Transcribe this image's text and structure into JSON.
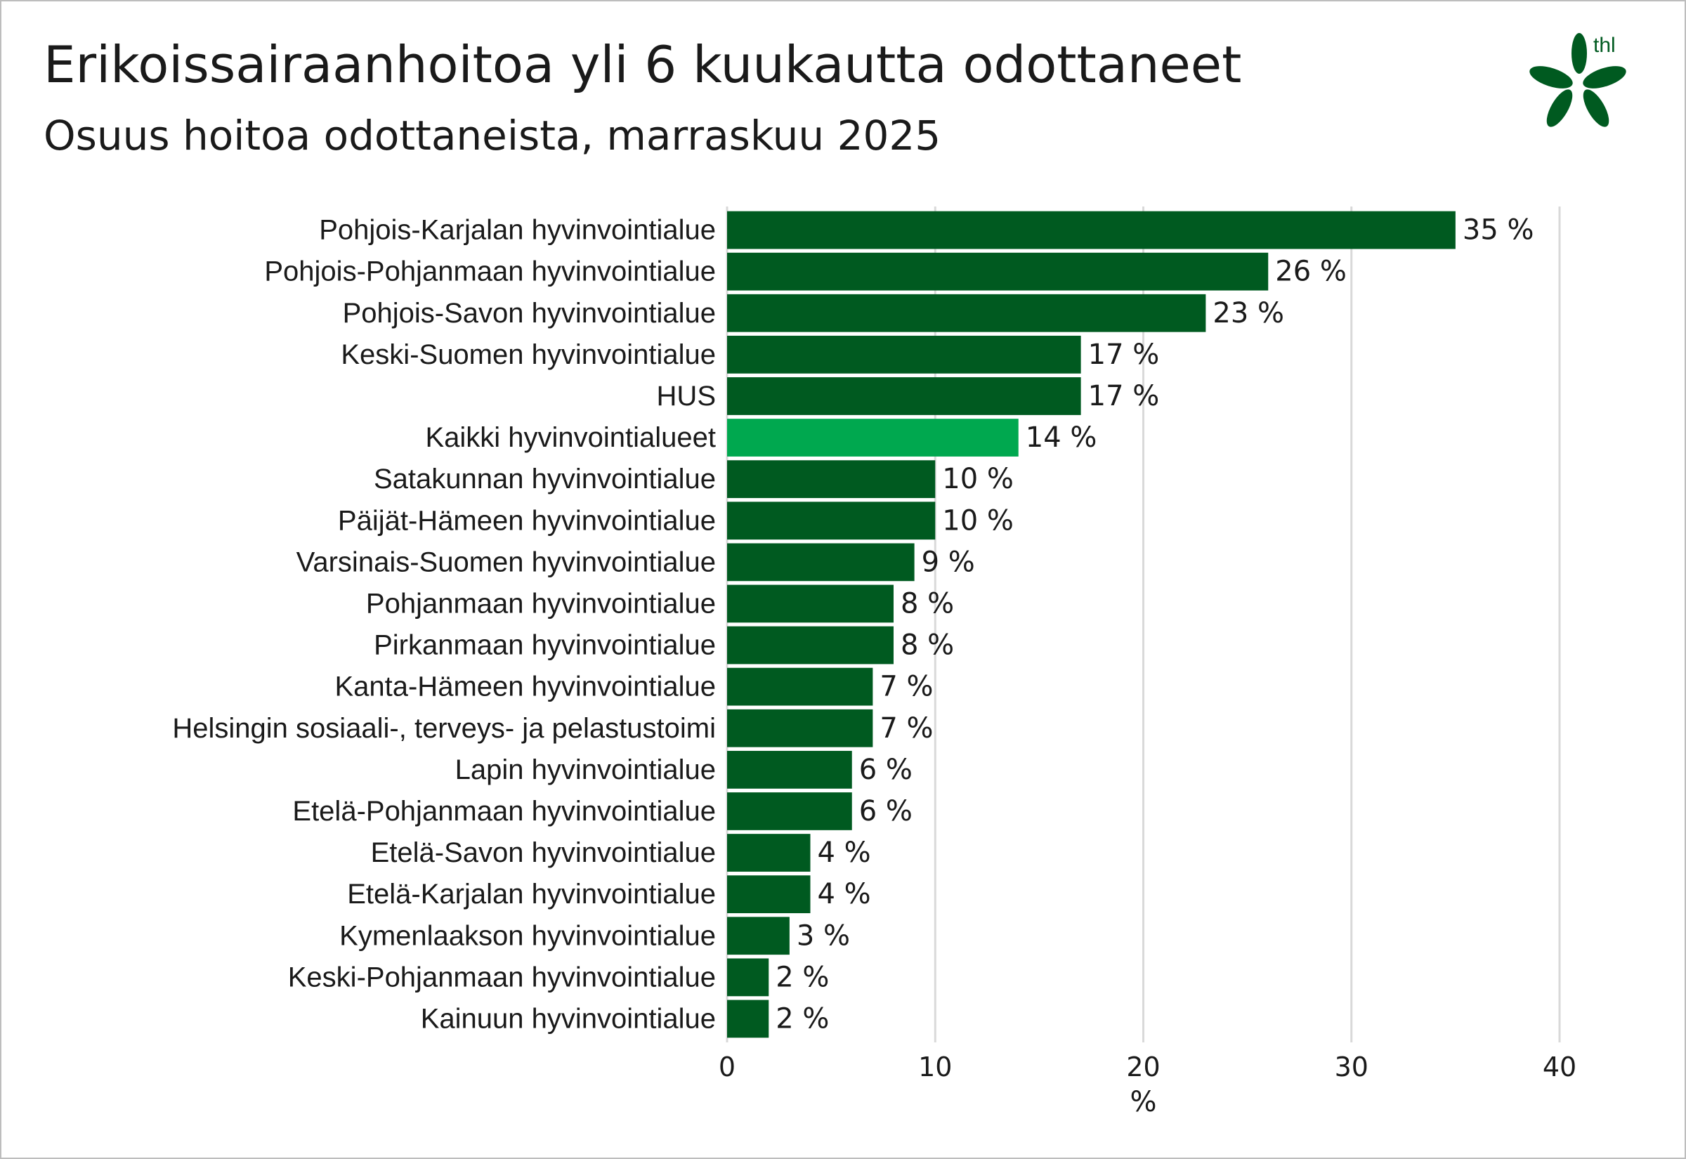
{
  "header": {
    "title": "Erikoissairaanhoitoa yli 6 kuukautta odottaneet",
    "subtitle": "Osuus hoitoa odottaneista, marraskuu 2025",
    "logo_text": "thl"
  },
  "colors": {
    "bar": "#005a20",
    "highlight_bar": "#00a84f",
    "grid": "#d9d9d9",
    "logo": "#005a20"
  },
  "chart_data": {
    "type": "bar",
    "orientation": "horizontal",
    "title": "Erikoissairaanhoitoa yli 6 kuukautta odottaneet",
    "subtitle": "Osuus hoitoa odottaneista, marraskuu 2025",
    "xlabel": "%",
    "ylabel": "",
    "xlim": [
      0,
      40
    ],
    "xticks": [
      0,
      10,
      20,
      30,
      40
    ],
    "grid": "vertical",
    "highlight_category": "Kaikki hyvinvointialueet",
    "categories": [
      "Pohjois-Karjalan hyvinvointialue",
      "Pohjois-Pohjanmaan hyvinvointialue",
      "Pohjois-Savon hyvinvointialue",
      "Keski-Suomen hyvinvointialue",
      "HUS",
      "Kaikki hyvinvointialueet",
      "Satakunnan hyvinvointialue",
      "Päijät-Hämeen hyvinvointialue",
      "Varsinais-Suomen hyvinvointialue",
      "Pohjanmaan hyvinvointialue",
      "Pirkanmaan hyvinvointialue",
      "Kanta-Hämeen hyvinvointialue",
      "Helsingin sosiaali-, terveys- ja pelastustoimi",
      "Lapin hyvinvointialue",
      "Etelä-Pohjanmaan hyvinvointialue",
      "Etelä-Savon hyvinvointialue",
      "Etelä-Karjalan hyvinvointialue",
      "Kymenlaakson hyvinvointialue",
      "Keski-Pohjanmaan hyvinvointialue",
      "Kainuun hyvinvointialue"
    ],
    "values": [
      35,
      26,
      23,
      17,
      17,
      14,
      10,
      10,
      9,
      8,
      8,
      7,
      7,
      6,
      6,
      4,
      4,
      3,
      2,
      2
    ],
    "value_labels": [
      "35 %",
      "26 %",
      "23 %",
      "17 %",
      "17 %",
      "14 %",
      "10 %",
      "10 %",
      "9 %",
      "8 %",
      "8 %",
      "7 %",
      "7 %",
      "6 %",
      "6 %",
      "4 %",
      "4 %",
      "3 %",
      "2 %",
      "2 %"
    ]
  }
}
